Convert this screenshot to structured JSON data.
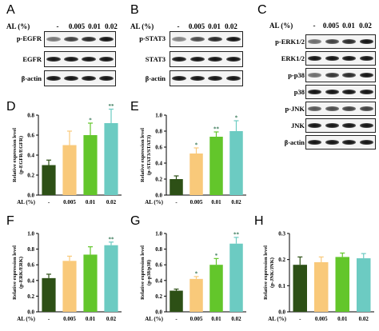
{
  "panel_letters": [
    "A",
    "B",
    "C",
    "D",
    "E",
    "F",
    "G",
    "H"
  ],
  "al_label": "AL (%)",
  "al_values": [
    "-",
    "0.005",
    "0.01",
    "0.02"
  ],
  "blots": {
    "A": [
      "p-EGFR",
      "EGFR",
      "β-actin"
    ],
    "B": [
      "p-STAT3",
      "STAT3",
      "β-actin"
    ],
    "C": [
      "p-ERK1/2",
      "ERK1/2",
      "p-p38",
      "p38",
      "p-JNK",
      "JNK",
      "β-actin"
    ]
  },
  "band_intensity": {
    "A": [
      [
        0.55,
        0.8,
        0.9,
        1.0
      ],
      [
        1,
        1,
        1,
        1
      ],
      [
        1,
        1,
        1,
        1
      ]
    ],
    "B": [
      [
        0.5,
        0.75,
        0.9,
        1.0
      ],
      [
        1,
        1,
        1,
        1
      ],
      [
        1,
        1,
        1,
        1
      ]
    ],
    "C": [
      [
        0.6,
        0.8,
        0.9,
        1.0
      ],
      [
        1,
        1,
        1,
        1
      ],
      [
        0.6,
        0.85,
        0.9,
        1.0
      ],
      [
        1,
        1,
        1,
        1
      ],
      [
        0.7,
        0.75,
        0.8,
        0.8
      ],
      [
        1,
        1,
        1,
        1
      ],
      [
        1,
        1,
        1,
        1
      ]
    ]
  },
  "colors": [
    "#2d5016",
    "#f9c97a",
    "#63c62b",
    "#6ccbc2"
  ],
  "chart_data": [
    {
      "id": "D",
      "type": "bar",
      "categories": [
        "-",
        "0.005",
        "0.01",
        "0.02"
      ],
      "values": [
        0.3,
        0.5,
        0.6,
        0.72
      ],
      "errors": [
        0.05,
        0.14,
        0.12,
        0.14
      ],
      "significance": [
        "",
        "",
        "*",
        "**"
      ],
      "ylabel": [
        "Relative expression level",
        "(p-EGFR/EGFR)"
      ],
      "xlabel": "AL (%)",
      "ylim": [
        0,
        0.8
      ],
      "yticks": [
        0.0,
        0.2,
        0.4,
        0.6,
        0.8
      ]
    },
    {
      "id": "E",
      "type": "bar",
      "categories": [
        "-",
        "0.005",
        "0.01",
        "0.02"
      ],
      "values": [
        0.2,
        0.52,
        0.73,
        0.8
      ],
      "errors": [
        0.04,
        0.07,
        0.06,
        0.13
      ],
      "significance": [
        "",
        "*",
        "**",
        "*"
      ],
      "ylabel": [
        "Relative expression level",
        "(p-STAT3/STAT3)"
      ],
      "xlabel": "AL (%)",
      "ylim": [
        0,
        1.0
      ],
      "yticks": [
        0.0,
        0.2,
        0.4,
        0.6,
        0.8,
        1.0
      ]
    },
    {
      "id": "F",
      "type": "bar",
      "categories": [
        "-",
        "0.005",
        "0.01",
        "0.02"
      ],
      "values": [
        0.43,
        0.65,
        0.73,
        0.85
      ],
      "errors": [
        0.05,
        0.06,
        0.1,
        0.04
      ],
      "significance": [
        "",
        "",
        "",
        "**"
      ],
      "ylabel": [
        "Relative expression level",
        "(p-ERK/ERK)"
      ],
      "xlabel": "AL (%)",
      "ylim": [
        0,
        1.0
      ],
      "yticks": [
        0.0,
        0.2,
        0.4,
        0.6,
        0.8,
        1.0
      ]
    },
    {
      "id": "G",
      "type": "bar",
      "categories": [
        "-",
        "0.005",
        "0.01",
        "0.02"
      ],
      "values": [
        0.27,
        0.42,
        0.6,
        0.87
      ],
      "errors": [
        0.02,
        0.03,
        0.08,
        0.08
      ],
      "significance": [
        "",
        "*",
        "*",
        "**"
      ],
      "ylabel": [
        "Relative expression level",
        "(p-p38/p38)"
      ],
      "xlabel": "AL (%)",
      "ylim": [
        0,
        1.0
      ],
      "yticks": [
        0.0,
        0.2,
        0.4,
        0.6,
        0.8,
        1.0
      ]
    },
    {
      "id": "H",
      "type": "bar",
      "categories": [
        "-",
        "0.005",
        "0.01",
        "0.02"
      ],
      "values": [
        0.18,
        0.19,
        0.21,
        0.205
      ],
      "errors": [
        0.03,
        0.02,
        0.015,
        0.018
      ],
      "significance": [
        "",
        "",
        "",
        ""
      ],
      "ylabel": [
        "Relative expression level",
        "(p-JNK/JNK)"
      ],
      "xlabel": "AL (%)",
      "ylim": [
        0,
        0.3
      ],
      "yticks": [
        0.0,
        0.1,
        0.2,
        0.3
      ]
    }
  ]
}
